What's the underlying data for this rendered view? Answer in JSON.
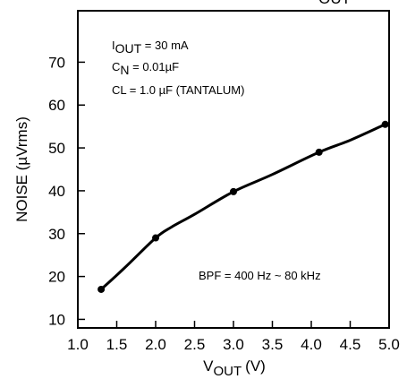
{
  "chart_data": {
    "type": "line",
    "title_partial": "OUT",
    "xlabel": {
      "main": "V",
      "sub": "OUT",
      "unit": "(V)"
    },
    "ylabel": "NOISE (µVrms)",
    "xlim": [
      1.0,
      5.0
    ],
    "ylim": [
      10,
      80
    ],
    "x_ticks": [
      "1.0",
      "1.5",
      "2.0",
      "2.5",
      "3.0",
      "3.5",
      "4.0",
      "4.5",
      "5.0"
    ],
    "y_ticks": [
      "10",
      "20",
      "30",
      "40",
      "50",
      "60",
      "70"
    ],
    "grid": false,
    "annotations": {
      "line1": {
        "main": "I",
        "sub": "OUT",
        "rest": " = 30 mA"
      },
      "line2": {
        "main": "C",
        "sub": "N",
        "rest": " = 0.01µF"
      },
      "line3": "CL = 1.0 µF (TANTALUM)",
      "bpf": "BPF = 400 Hz ~ 80 kHz"
    },
    "series": [
      {
        "x": [
          1.3,
          1.6,
          2.0,
          2.2,
          2.5,
          3.0,
          3.5,
          4.1,
          4.5,
          4.95
        ],
        "y": [
          17,
          22,
          29,
          31.5,
          34.5,
          39.8,
          43.8,
          49,
          51.8,
          55.5
        ],
        "markers_at": [
          1.3,
          2.0,
          3.0,
          4.1,
          4.95
        ]
      }
    ]
  }
}
